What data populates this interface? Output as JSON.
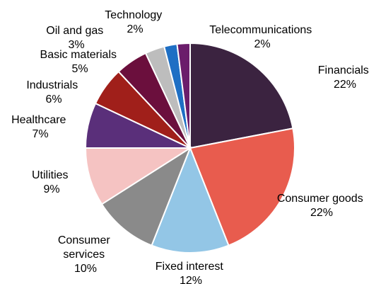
{
  "chart_data": {
    "type": "pie",
    "title": "",
    "slices": [
      {
        "name": "Financials",
        "value": 22,
        "label": "22%",
        "color": "#3b2340"
      },
      {
        "name": "Consumer goods",
        "value": 22,
        "label": "22%",
        "color": "#e85c4e"
      },
      {
        "name": "Fixed interest",
        "value": 12,
        "label": "12%",
        "color": "#93c6e6"
      },
      {
        "name": "Consumer services",
        "value": 10,
        "label": "10%",
        "color": "#8a8a8a"
      },
      {
        "name": "Utilities",
        "value": 9,
        "label": "9%",
        "color": "#f5c3c2"
      },
      {
        "name": "Healthcare",
        "value": 7,
        "label": "7%",
        "color": "#5a2f7a"
      },
      {
        "name": "Industrials",
        "value": 6,
        "label": "6%",
        "color": "#a01f1a"
      },
      {
        "name": "Basic materials",
        "value": 5,
        "label": "5%",
        "color": "#6b0f3d"
      },
      {
        "name": "Oil and gas",
        "value": 3,
        "label": "3%",
        "color": "#bdbdbd"
      },
      {
        "name": "Technology",
        "value": 2,
        "label": "2%",
        "color": "#1e6fc4"
      },
      {
        "name": "Telecommunications",
        "value": 2,
        "label": "2%",
        "color": "#6b1d6b"
      }
    ]
  }
}
